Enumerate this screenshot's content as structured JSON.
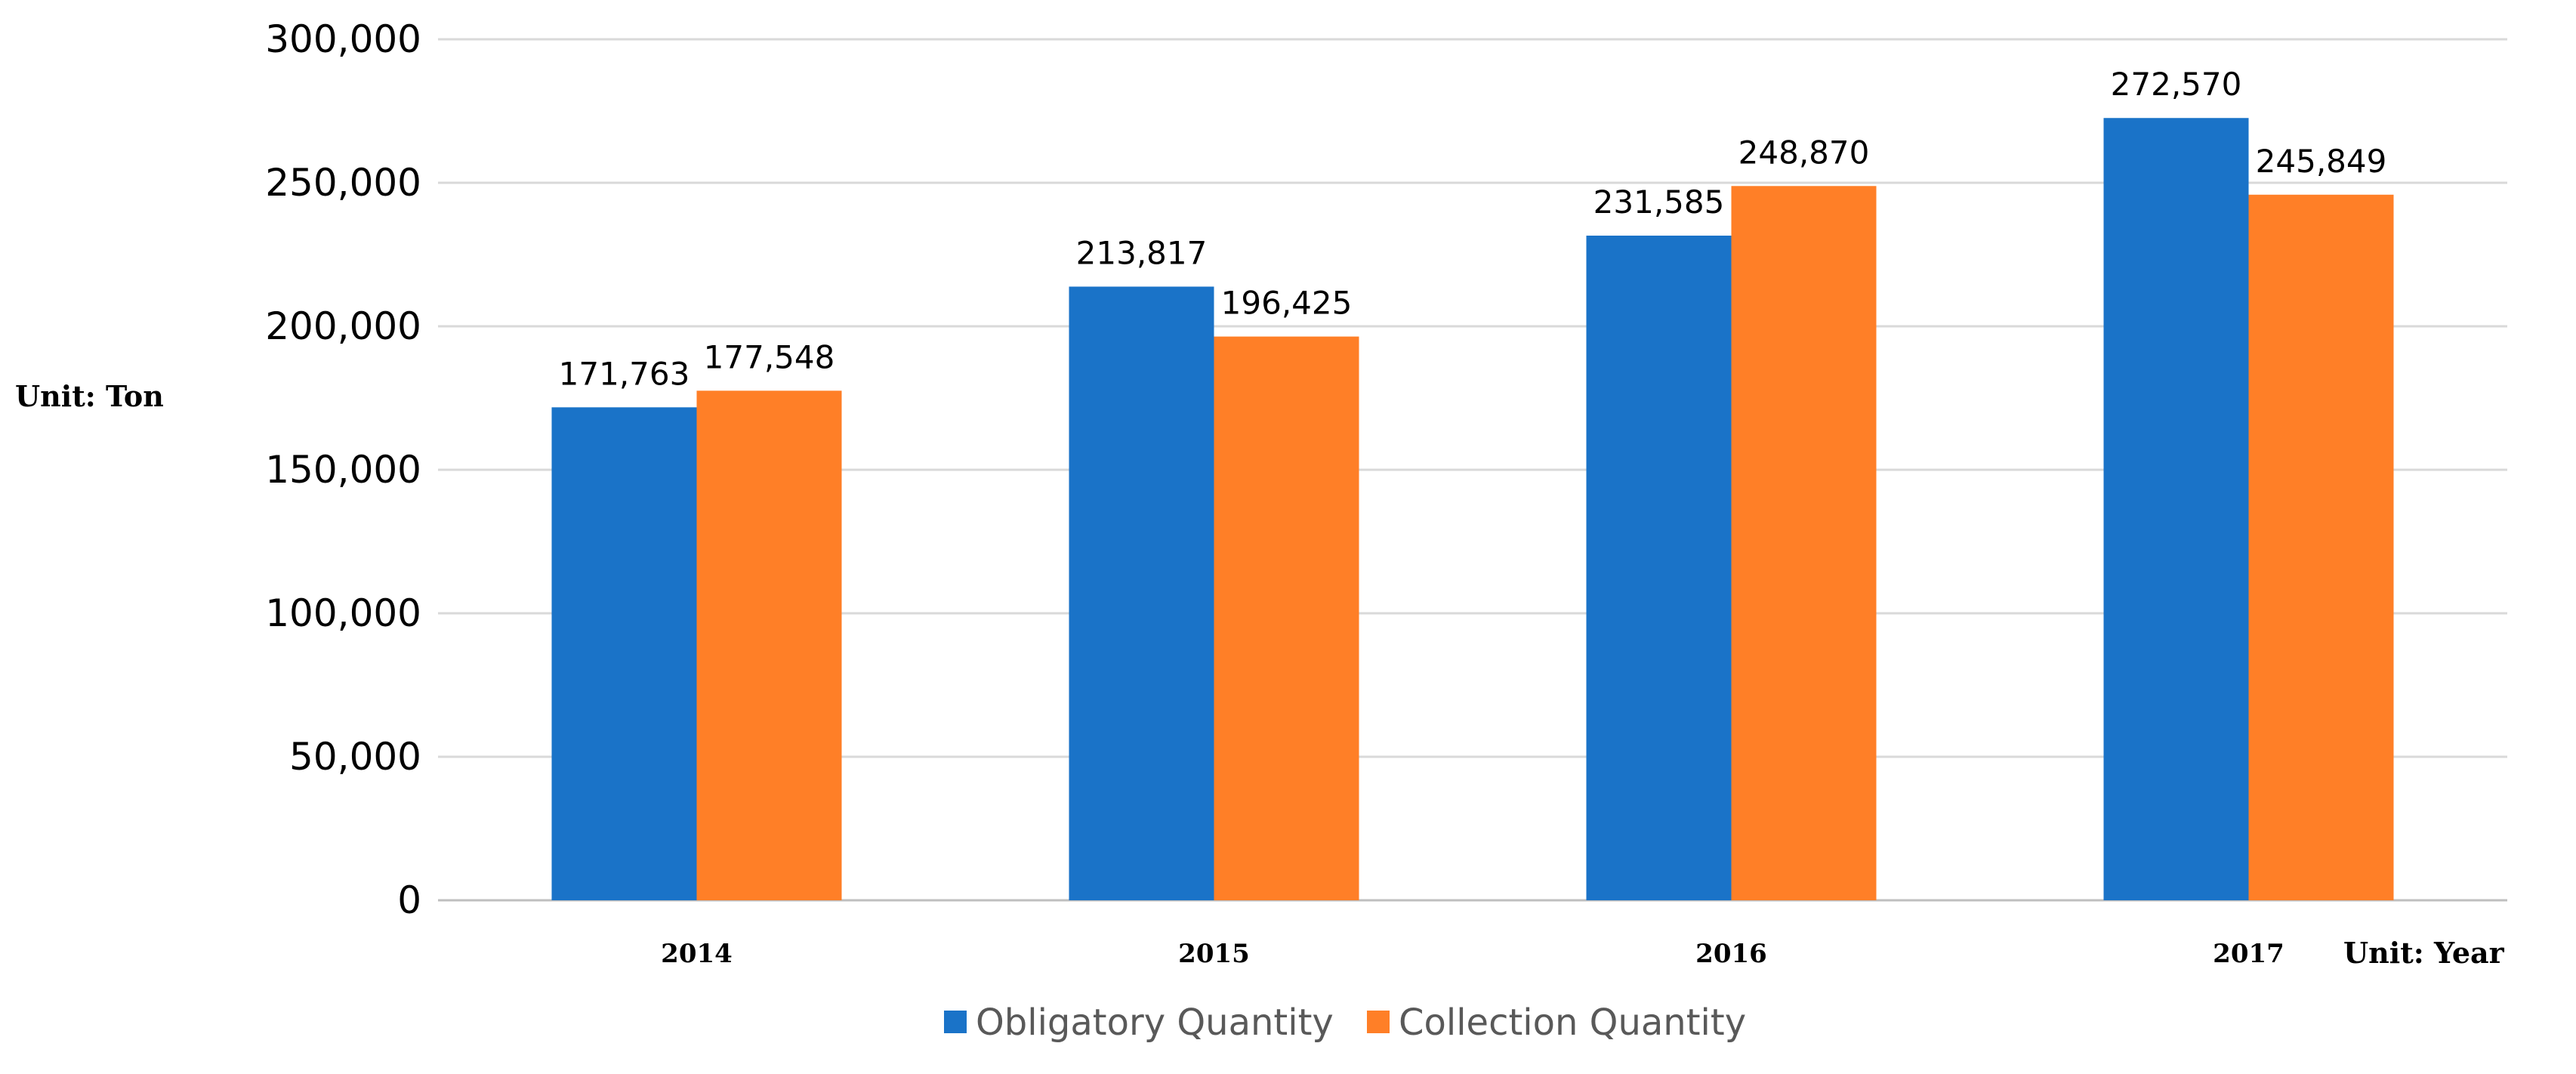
{
  "chart_data": {
    "type": "bar",
    "categories": [
      "2014",
      "2015",
      "2016",
      "2017"
    ],
    "series": [
      {
        "name": "Obligatory Quantity",
        "color": "#1a73c8",
        "values": [
          171763,
          213817,
          231585,
          272570
        ],
        "data_labels": [
          "171,763",
          "213,817",
          "231,585",
          "272,570"
        ]
      },
      {
        "name": "Collection Quantity",
        "color": "#ff7f27",
        "values": [
          177548,
          196425,
          248870,
          245849
        ],
        "data_labels": [
          "177,548",
          "196,425",
          "248,870",
          "245,849"
        ]
      }
    ],
    "ylim": [
      0,
      300000
    ],
    "y_ticks": [
      0,
      50000,
      100000,
      150000,
      200000,
      250000,
      300000
    ],
    "y_tick_labels": [
      "0",
      "50,000",
      "100,000",
      "150,000",
      "200,000",
      "250,000",
      "300,000"
    ],
    "ylabel": "Unit: Ton",
    "xlabel": "Unit: Year",
    "grid": true,
    "legend_position": "bottom"
  }
}
